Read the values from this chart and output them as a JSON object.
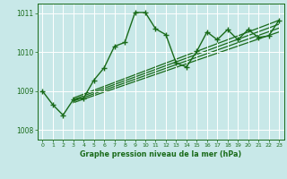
{
  "bg_color": "#c8e8e8",
  "grid_color": "#ffffff",
  "line_color": "#1a6b1a",
  "xlabel": "Graphe pression niveau de la mer (hPa)",
  "xlabel_color": "#1a6b1a",
  "tick_color": "#1a6b1a",
  "xlim": [
    -0.5,
    23.5
  ],
  "ylim": [
    1007.75,
    1011.25
  ],
  "yticks": [
    1008,
    1009,
    1010,
    1011
  ],
  "xticks": [
    0,
    1,
    2,
    3,
    4,
    5,
    6,
    7,
    8,
    9,
    10,
    11,
    12,
    13,
    14,
    15,
    16,
    17,
    18,
    19,
    20,
    21,
    22,
    23
  ],
  "main_series": {
    "x": [
      0,
      1,
      2,
      3,
      4,
      5,
      6,
      7,
      8,
      9,
      10,
      11,
      12,
      13,
      14,
      15,
      16,
      17,
      18,
      19,
      20,
      21,
      22,
      23
    ],
    "y": [
      1009.0,
      1008.65,
      1008.38,
      1008.78,
      1008.82,
      1009.28,
      1009.6,
      1010.15,
      1010.25,
      1011.02,
      1011.02,
      1010.6,
      1010.45,
      1009.72,
      1009.62,
      1010.02,
      1010.52,
      1010.32,
      1010.58,
      1010.32,
      1010.58,
      1010.38,
      1010.42,
      1010.82
    ]
  },
  "straight_lines": [
    {
      "x": [
        3,
        23
      ],
      "y": [
        1008.82,
        1010.82
      ]
    },
    {
      "x": [
        3,
        23
      ],
      "y": [
        1008.78,
        1010.72
      ]
    },
    {
      "x": [
        3,
        23
      ],
      "y": [
        1008.74,
        1010.62
      ]
    },
    {
      "x": [
        3,
        23
      ],
      "y": [
        1008.7,
        1010.52
      ]
    }
  ]
}
